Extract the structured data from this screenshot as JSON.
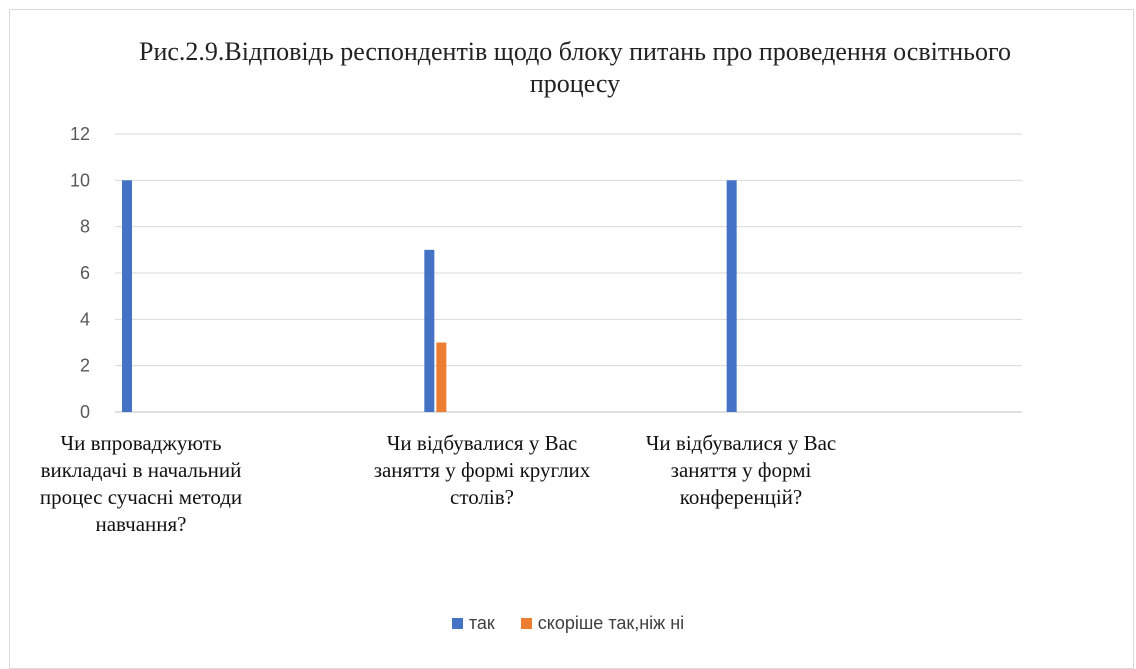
{
  "chart_data": {
    "type": "bar",
    "title": "Рис.2.9.Відповідь респондентів щодо блоку питань про проведення освітнього процесу",
    "categories": [
      "Чи впроваджують викладачі в начальний процес сучасні методи навчання?",
      "Чи відбувалися у Вас заняття у формі круглих столів?",
      "Чи відбувалися у Вас заняття у формі конференцій?"
    ],
    "series": [
      {
        "name": "так",
        "values": [
          10,
          7,
          10
        ],
        "color": "#4472c4"
      },
      {
        "name": "скоріше так,ніж ні",
        "values": [
          0,
          3,
          0
        ],
        "color": "#ed7d31"
      }
    ],
    "y_ticks": [
      "0",
      "2",
      "4",
      "6",
      "8",
      "10",
      "12"
    ],
    "ylim": [
      0,
      12
    ],
    "grid": true,
    "legend_position": "bottom"
  }
}
